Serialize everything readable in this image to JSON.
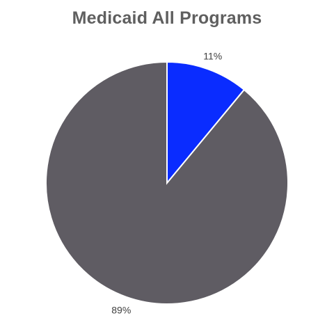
{
  "chart_data": {
    "type": "pie",
    "title": "Medicaid All Programs",
    "slices": [
      {
        "label": "11%",
        "value": 11,
        "color": "#0a2cff"
      },
      {
        "label": "89%",
        "value": 89,
        "color": "#5f5c63"
      }
    ],
    "legend": "none"
  }
}
